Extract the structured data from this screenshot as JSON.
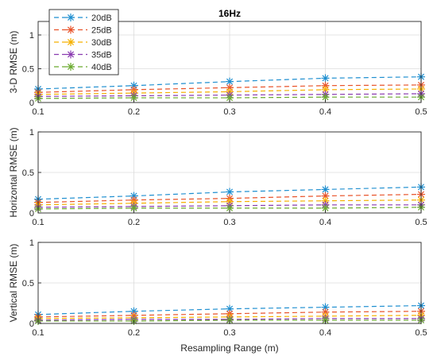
{
  "title": "16Hz",
  "xlabel": "Resampling Range (m)",
  "legend": {
    "placement": "top-left",
    "entries": [
      "20dB",
      "25dB",
      "30dB",
      "35dB",
      "40dB"
    ]
  },
  "colors": {
    "20dB": "#1f8fd0",
    "25dB": "#e8532a",
    "30dB": "#f5b000",
    "35dB": "#8a3bb0",
    "40dB": "#6aaa2e"
  },
  "chart_data": [
    {
      "type": "line",
      "title": "16Hz",
      "xlabel": "",
      "ylabel": "3-D RMSE (m)",
      "x": [
        0.1,
        0.2,
        0.3,
        0.4,
        0.5
      ],
      "xticks": [
        "0.1",
        "0.2",
        "0.3",
        "0.4",
        "0.5"
      ],
      "xlim": [
        0.1,
        0.5
      ],
      "ylim": [
        0,
        1.2
      ],
      "yticks": [
        0,
        0.5,
        1
      ],
      "ytick_labels": [
        "0",
        "0.5",
        "1"
      ],
      "grid": true,
      "series": [
        {
          "name": "20dB",
          "values": [
            0.2,
            0.25,
            0.31,
            0.36,
            0.38
          ]
        },
        {
          "name": "25dB",
          "values": [
            0.15,
            0.19,
            0.22,
            0.25,
            0.26
          ]
        },
        {
          "name": "30dB",
          "values": [
            0.12,
            0.14,
            0.16,
            0.19,
            0.2
          ]
        },
        {
          "name": "35dB",
          "values": [
            0.09,
            0.1,
            0.11,
            0.12,
            0.13
          ]
        },
        {
          "name": "40dB",
          "values": [
            0.06,
            0.07,
            0.07,
            0.08,
            0.08
          ]
        }
      ]
    },
    {
      "type": "line",
      "xlabel": "",
      "ylabel": "Horizontal RMSE (m)",
      "x": [
        0.1,
        0.2,
        0.3,
        0.4,
        0.5
      ],
      "xticks": [
        "0.1",
        "0.2",
        "0.3",
        "0.4",
        "0.5"
      ],
      "xlim": [
        0.1,
        0.5
      ],
      "ylim": [
        0,
        1
      ],
      "yticks": [
        0,
        0.5,
        1
      ],
      "ytick_labels": [
        "0",
        "0.5",
        "1"
      ],
      "grid": true,
      "series": [
        {
          "name": "20dB",
          "values": [
            0.17,
            0.21,
            0.26,
            0.29,
            0.32
          ]
        },
        {
          "name": "25dB",
          "values": [
            0.13,
            0.16,
            0.18,
            0.21,
            0.23
          ]
        },
        {
          "name": "30dB",
          "values": [
            0.1,
            0.12,
            0.14,
            0.15,
            0.16
          ]
        },
        {
          "name": "35dB",
          "values": [
            0.07,
            0.08,
            0.09,
            0.1,
            0.1
          ]
        },
        {
          "name": "40dB",
          "values": [
            0.05,
            0.06,
            0.06,
            0.06,
            0.07
          ]
        }
      ]
    },
    {
      "type": "line",
      "xlabel": "Resampling Range (m)",
      "ylabel": "Vertical RMSE (m)",
      "x": [
        0.1,
        0.2,
        0.3,
        0.4,
        0.5
      ],
      "xticks": [
        "0.1",
        "0.2",
        "0.3",
        "0.4",
        "0.5"
      ],
      "xlim": [
        0.1,
        0.5
      ],
      "ylim": [
        0,
        1
      ],
      "yticks": [
        0,
        0.5,
        1
      ],
      "ytick_labels": [
        "0",
        "0.5",
        "1"
      ],
      "grid": true,
      "series": [
        {
          "name": "20dB",
          "values": [
            0.11,
            0.15,
            0.18,
            0.2,
            0.22
          ]
        },
        {
          "name": "25dB",
          "values": [
            0.08,
            0.1,
            0.12,
            0.14,
            0.15
          ]
        },
        {
          "name": "30dB",
          "values": [
            0.06,
            0.07,
            0.08,
            0.09,
            0.1
          ]
        },
        {
          "name": "35dB",
          "values": [
            0.04,
            0.05,
            0.05,
            0.06,
            0.06
          ]
        },
        {
          "name": "40dB",
          "values": [
            0.03,
            0.03,
            0.04,
            0.04,
            0.04
          ]
        }
      ]
    }
  ]
}
